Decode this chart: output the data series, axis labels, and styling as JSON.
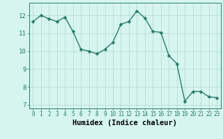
{
  "x": [
    0,
    1,
    2,
    3,
    4,
    5,
    6,
    7,
    8,
    9,
    10,
    11,
    12,
    13,
    14,
    15,
    16,
    17,
    18,
    19,
    20,
    21,
    22,
    23
  ],
  "y": [
    11.65,
    12.0,
    11.8,
    11.65,
    11.9,
    11.1,
    10.1,
    10.0,
    9.85,
    10.1,
    10.5,
    11.5,
    11.65,
    12.25,
    11.85,
    11.1,
    11.05,
    9.75,
    9.3,
    7.2,
    7.75,
    7.75,
    7.45,
    7.4
  ],
  "line_color": "#2a7a6a",
  "marker": "D",
  "markersize": 2.5,
  "linewidth": 1.0,
  "background_color": "#d6f5ef",
  "grid_color": "#b0d8cf",
  "xlabel": "Humidex (Indice chaleur)",
  "xlabel_fontsize": 7.5,
  "xlim": [
    -0.5,
    23.5
  ],
  "ylim": [
    6.8,
    12.7
  ],
  "yticks": [
    7,
    8,
    9,
    10,
    11,
    12
  ],
  "xticks": [
    0,
    1,
    2,
    3,
    4,
    5,
    6,
    7,
    8,
    9,
    10,
    11,
    12,
    13,
    14,
    15,
    16,
    17,
    18,
    19,
    20,
    21,
    22,
    23
  ],
  "xtick_labels": [
    "0",
    "1",
    "2",
    "3",
    "4",
    "5",
    "6",
    "7",
    "8",
    "9",
    "10",
    "11",
    "12",
    "13",
    "14",
    "15",
    "16",
    "17",
    "18",
    "19",
    "20",
    "21",
    "22",
    "23"
  ],
  "tick_fontsize": 5.5,
  "ytick_fontsize": 6.5
}
